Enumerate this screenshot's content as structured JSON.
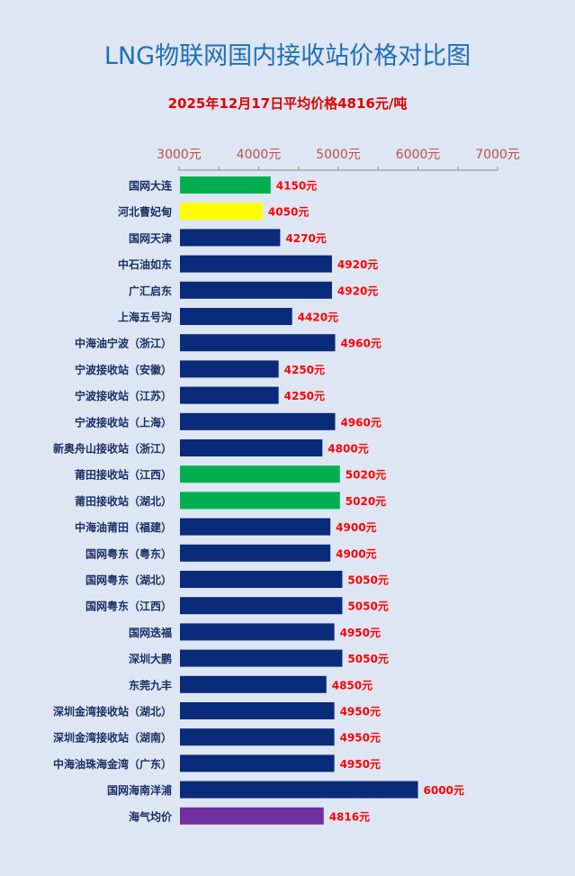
{
  "chart_data": {
    "type": "bar",
    "orientation": "horizontal",
    "title": "LNG物联网国内接收站价格对比图",
    "subtitle": "2025年12月17日平均价格4816元/吨",
    "value_suffix": "元",
    "xlim": [
      3000,
      7000
    ],
    "ticks": [
      3000,
      4000,
      5000,
      6000,
      7000
    ],
    "tick_labels": [
      "3000元",
      "4000元",
      "5000元",
      "6000元",
      "7000元"
    ],
    "axis_position": "top",
    "grid": false,
    "colors": {
      "navy": "#0a2a7a",
      "green": "#00b050",
      "yellow": "#ffff00",
      "purple": "#7030a0",
      "label": "#ff0000",
      "tick": "#c0504d",
      "category": "#1a2f66"
    },
    "bars": [
      {
        "label": "国网大连",
        "value": 4150,
        "color": "green"
      },
      {
        "label": "河北曹妃甸",
        "value": 4050,
        "color": "yellow"
      },
      {
        "label": "国网天津",
        "value": 4270,
        "color": "navy"
      },
      {
        "label": "中石油如东",
        "value": 4920,
        "color": "navy"
      },
      {
        "label": "广汇启东",
        "value": 4920,
        "color": "navy"
      },
      {
        "label": "上海五号沟",
        "value": 4420,
        "color": "navy"
      },
      {
        "label": "中海油宁波（浙江）",
        "value": 4960,
        "color": "navy"
      },
      {
        "label": "宁波接收站（安徽）",
        "value": 4250,
        "color": "navy"
      },
      {
        "label": "宁波接收站（江苏）",
        "value": 4250,
        "color": "navy"
      },
      {
        "label": "宁波接收站（上海）",
        "value": 4960,
        "color": "navy"
      },
      {
        "label": "新奥舟山接收站（浙江）",
        "value": 4800,
        "color": "navy"
      },
      {
        "label": "莆田接收站（江西）",
        "value": 5020,
        "color": "green"
      },
      {
        "label": "莆田接收站（湖北）",
        "value": 5020,
        "color": "green"
      },
      {
        "label": "中海油莆田（福建）",
        "value": 4900,
        "color": "navy"
      },
      {
        "label": "国网粤东（粤东）",
        "value": 4900,
        "color": "navy"
      },
      {
        "label": "国网粤东（湖北）",
        "value": 5050,
        "color": "navy"
      },
      {
        "label": "国网粤东（江西）",
        "value": 5050,
        "color": "navy"
      },
      {
        "label": "国网迭福",
        "value": 4950,
        "color": "navy"
      },
      {
        "label": "深圳大鹏",
        "value": 5050,
        "color": "navy"
      },
      {
        "label": "东莞九丰",
        "value": 4850,
        "color": "navy"
      },
      {
        "label": "深圳金湾接收站（湖北）",
        "value": 4950,
        "color": "navy"
      },
      {
        "label": "深圳金湾接收站（湖南）",
        "value": 4950,
        "color": "navy"
      },
      {
        "label": "中海油珠海金湾（广东）",
        "value": 4950,
        "color": "navy"
      },
      {
        "label": "国网海南洋浦",
        "value": 6000,
        "color": "navy"
      },
      {
        "label": "海气均价",
        "value": 4816,
        "color": "purple"
      }
    ]
  }
}
